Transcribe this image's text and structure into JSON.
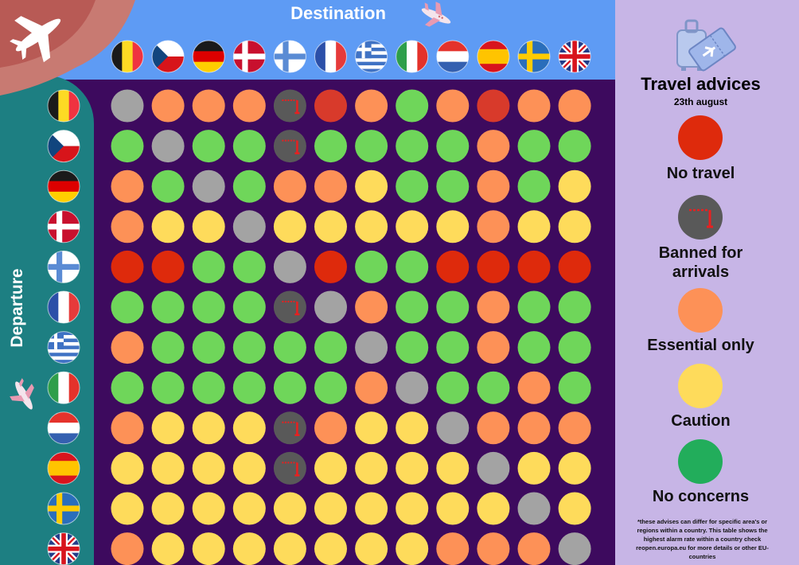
{
  "colors": {
    "no_travel": "#de2a0c",
    "no_travel_dark": "#d83a2b",
    "banned": "#595959",
    "essential": "#fd9157",
    "caution": "#fedb5b",
    "no_concerns": "#6fd65a",
    "legend_green": "#22ad5b",
    "self": "#a3a3a3"
  },
  "header": {
    "destination_label": "Destination",
    "departure_label": "Departure"
  },
  "legend": {
    "title": "Travel advices",
    "date": "23th august",
    "items": [
      {
        "key": "no_travel",
        "label": "No travel"
      },
      {
        "key": "banned",
        "label": "Banned for arrivals"
      },
      {
        "key": "essential",
        "label": "Essential only"
      },
      {
        "key": "caution",
        "label": "Caution"
      },
      {
        "key": "no_concerns",
        "label": "No concerns"
      }
    ],
    "footnote": "*these advises can differ for specific area's or regions within a country. This table shows the highest alarm rate within a country check reopen.europa.eu for more details or other EU-countries"
  },
  "chart_data": {
    "type": "heatmap",
    "countries": [
      "belgium",
      "czechia",
      "germany",
      "denmark",
      "finland",
      "france",
      "greece",
      "italy",
      "netherlands",
      "spain",
      "sweden",
      "united-kingdom"
    ],
    "rows_departure": [
      "belgium",
      "czechia",
      "germany",
      "denmark",
      "finland",
      "france",
      "greece",
      "italy",
      "netherlands",
      "spain",
      "sweden",
      "united-kingdom"
    ],
    "columns_destination": [
      "belgium",
      "czechia",
      "germany",
      "denmark",
      "finland",
      "france",
      "greece",
      "italy",
      "netherlands",
      "spain",
      "sweden",
      "united-kingdom"
    ],
    "codes": {
      "S": "self",
      "B": "banned",
      "R": "no_travel",
      "E": "essential",
      "C": "caution",
      "G": "no_concerns"
    },
    "matrix": [
      [
        "S",
        "E",
        "E",
        "E",
        "B",
        "R",
        "E",
        "G",
        "E",
        "R",
        "E",
        "E"
      ],
      [
        "G",
        "S",
        "G",
        "G",
        "B",
        "G",
        "G",
        "G",
        "G",
        "E",
        "G",
        "G"
      ],
      [
        "E",
        "G",
        "S",
        "G",
        "E",
        "E",
        "C",
        "G",
        "G",
        "E",
        "G",
        "C"
      ],
      [
        "E",
        "C",
        "C",
        "S",
        "C",
        "C",
        "C",
        "C",
        "C",
        "E",
        "C",
        "C"
      ],
      [
        "R",
        "R",
        "G",
        "G",
        "S",
        "R",
        "G",
        "G",
        "R",
        "R",
        "R",
        "R"
      ],
      [
        "G",
        "G",
        "G",
        "G",
        "B",
        "S",
        "E",
        "G",
        "G",
        "E",
        "G",
        "G"
      ],
      [
        "E",
        "G",
        "G",
        "G",
        "G",
        "G",
        "S",
        "G",
        "G",
        "E",
        "G",
        "G"
      ],
      [
        "G",
        "G",
        "G",
        "G",
        "G",
        "G",
        "E",
        "S",
        "G",
        "G",
        "E",
        "G"
      ],
      [
        "E",
        "C",
        "C",
        "C",
        "B",
        "E",
        "C",
        "C",
        "S",
        "E",
        "E",
        "E"
      ],
      [
        "C",
        "C",
        "C",
        "C",
        "B",
        "C",
        "C",
        "C",
        "C",
        "S",
        "C",
        "C"
      ],
      [
        "C",
        "C",
        "C",
        "C",
        "C",
        "C",
        "C",
        "C",
        "C",
        "C",
        "S",
        "C"
      ],
      [
        "E",
        "C",
        "C",
        "C",
        "C",
        "C",
        "C",
        "C",
        "E",
        "E",
        "E",
        "S"
      ]
    ]
  }
}
